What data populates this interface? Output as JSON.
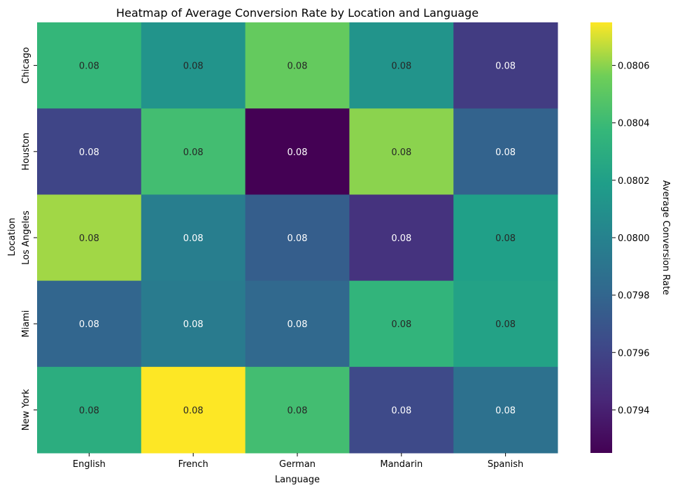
{
  "chart_data": {
    "type": "heatmap",
    "title": "Heatmap of Average Conversion Rate by Location and Language",
    "xlabel": "Language",
    "ylabel": "Location",
    "x_categories": [
      "English",
      "French",
      "German",
      "Mandarin",
      "Spanish"
    ],
    "y_categories": [
      "Chicago",
      "Houston",
      "Los Angeles",
      "Miami",
      "New York"
    ],
    "values": [
      [
        0.08037,
        0.08012,
        0.08053,
        0.08012,
        0.07955
      ],
      [
        0.0796,
        0.08042,
        0.07925,
        0.0806,
        0.07978
      ],
      [
        0.08063,
        0.07997,
        0.07975,
        0.0795,
        0.0802
      ],
      [
        0.0798,
        0.07995,
        0.07982,
        0.08035,
        0.08022
      ],
      [
        0.0803,
        0.08075,
        0.08042,
        0.07963,
        0.07988
      ]
    ],
    "cell_labels": [
      [
        "0.08",
        "0.08",
        "0.08",
        "0.08",
        "0.08"
      ],
      [
        "0.08",
        "0.08",
        "0.08",
        "0.08",
        "0.08"
      ],
      [
        "0.08",
        "0.08",
        "0.08",
        "0.08",
        "0.08"
      ],
      [
        "0.08",
        "0.08",
        "0.08",
        "0.08",
        "0.08"
      ],
      [
        "0.08",
        "0.08",
        "0.08",
        "0.08",
        "0.08"
      ]
    ],
    "colormap": "viridis",
    "vmin": 0.07925,
    "vmax": 0.08075,
    "colorbar_label": "Average Conversion Rate",
    "colorbar_ticks": [
      0.0794,
      0.0796,
      0.0798,
      0.08,
      0.0802,
      0.0804,
      0.0806
    ],
    "colorbar_tick_labels": [
      "0.0794",
      "0.0796",
      "0.0798",
      "0.0800",
      "0.0802",
      "0.0804",
      "0.0806"
    ]
  }
}
